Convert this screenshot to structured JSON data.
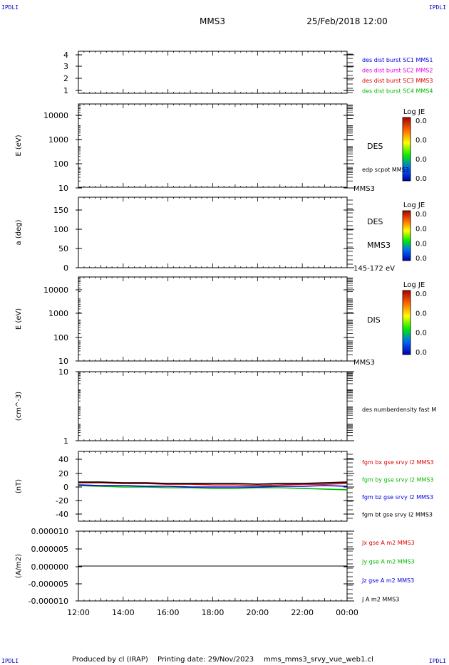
{
  "header": {
    "title": "MMS3",
    "date": "25/Feb/2018 12:00",
    "corner_tl": "IPDLI",
    "corner_tr": "IPDLI",
    "corner_bl": "IPDLI",
    "corner_br": "IPDLI"
  },
  "footer": {
    "producer": "Produced by cl (IRAP)",
    "printing": "Printing date: 29/Nov/2023",
    "file": "mms_mms3_srvy_vue_web1.cl"
  },
  "colors": {
    "red": "#dd0000",
    "green": "#00bb00",
    "blue": "#0000dd",
    "magenta": "#dd00dd",
    "black": "#000000"
  },
  "chart_data": [
    {
      "type": "line",
      "id": "panel-sc",
      "yticks": [
        "4",
        "3",
        "2",
        "1"
      ],
      "ylim": [
        0.7,
        4.3
      ],
      "legend": [
        {
          "label": "des dist burst SC1 MMS1",
          "color": "#0000dd"
        },
        {
          "label": "des dist burst SC2 MMS2",
          "color": "#dd00dd"
        },
        {
          "label": "des dist burst SC3 MMS3",
          "color": "#dd0000"
        },
        {
          "label": "des dist burst SC4 MMS4",
          "color": "#00bb00"
        }
      ]
    },
    {
      "type": "heatmap",
      "id": "panel-des-energy",
      "ylabel": "E (eV)",
      "yscale": "log",
      "yticks": [
        "10000",
        "1000",
        "100",
        "10"
      ],
      "ylim": [
        10,
        25000
      ],
      "side_labels": [
        "DES"
      ],
      "annotation": "edp scpot MMS3",
      "bottom_label": "MMS3",
      "colorbar": {
        "title": "Log JE",
        "ticks": [
          "0.0",
          "0.0",
          "0.0",
          "0.0"
        ]
      }
    },
    {
      "type": "heatmap",
      "id": "panel-des-pitch",
      "ylabel": "a (deg)",
      "yticks": [
        "150",
        "100",
        "50",
        "0"
      ],
      "ylim": [
        0,
        185
      ],
      "side_labels": [
        "DES",
        "MMS3"
      ],
      "bottom_label": "145-172 eV",
      "colorbar": {
        "title": "Log JE",
        "ticks": [
          "0.0",
          "0.0",
          "0.0",
          "0.0"
        ]
      }
    },
    {
      "type": "heatmap",
      "id": "panel-dis-energy",
      "ylabel": "E (eV)",
      "yscale": "log",
      "yticks": [
        "10000",
        "1000",
        "100",
        "10"
      ],
      "ylim": [
        10,
        25000
      ],
      "side_labels": [
        "DIS"
      ],
      "bottom_label": "MMS3",
      "colorbar": {
        "title": "Log JE",
        "ticks": [
          "0.0",
          "0.0",
          "0.0",
          "0.0"
        ]
      }
    },
    {
      "type": "line",
      "id": "panel-density",
      "ylabel": "(cm^-3)",
      "yscale": "log",
      "yticks": [
        "10",
        "1"
      ],
      "ylim": [
        1,
        10
      ],
      "legend": [
        {
          "label": "des numberdensity fast M",
          "color": "#000000"
        }
      ]
    },
    {
      "type": "line",
      "id": "panel-fgm",
      "ylabel": "(nT)",
      "yticks": [
        "40",
        "20",
        "0",
        "-20",
        "-40"
      ],
      "ylim": [
        -50,
        50
      ],
      "x": [
        0,
        1,
        2,
        3,
        4,
        5,
        6,
        7,
        8,
        9,
        10,
        11,
        12
      ],
      "series": [
        {
          "name": "fgm bx gse srvy l2 MMS3",
          "color": "#dd0000",
          "values": [
            5,
            5,
            4,
            4,
            3,
            3,
            2,
            2,
            1,
            2,
            3,
            3,
            4
          ]
        },
        {
          "name": "fgm by gse srvy l2 MMS3",
          "color": "#00bb00",
          "values": [
            1,
            0,
            -1,
            -1,
            -2,
            -2,
            -3,
            -3,
            -2,
            -2,
            -3,
            -4,
            -5
          ]
        },
        {
          "name": "fgm bz gse srvy l2 MMS3",
          "color": "#0000dd",
          "values": [
            2,
            1,
            1,
            0,
            0,
            -1,
            -1,
            -1,
            -1,
            0,
            0,
            1,
            0
          ]
        },
        {
          "name": "fgm bt gse srvy l2 MMS3",
          "color": "#000000",
          "values": [
            6,
            6,
            5,
            5,
            4,
            4,
            4,
            4,
            3,
            4,
            4,
            5,
            6
          ]
        }
      ]
    },
    {
      "type": "line",
      "id": "panel-current",
      "ylabel": "(A/m2)",
      "yticks": [
        "0.000010",
        "0.000005",
        "0.000000",
        "-0.000005",
        "-0.000010"
      ],
      "ylim": [
        -1e-05,
        1e-05
      ],
      "legend": [
        {
          "label": "Jx gse A m2 MMS3",
          "color": "#dd0000"
        },
        {
          "label": "Jy gse A m2 MMS3",
          "color": "#00bb00"
        },
        {
          "label": "Jz gse A m2 MMS3",
          "color": "#0000dd"
        },
        {
          "label": "J A m2 MMS3",
          "color": "#000000"
        }
      ],
      "x": [
        0,
        12
      ],
      "values": [
        0,
        0
      ]
    }
  ],
  "xaxis": {
    "ticks": [
      "12:00",
      "14:00",
      "16:00",
      "18:00",
      "20:00",
      "22:00",
      "00:00"
    ],
    "range_hours": [
      0,
      12
    ]
  }
}
